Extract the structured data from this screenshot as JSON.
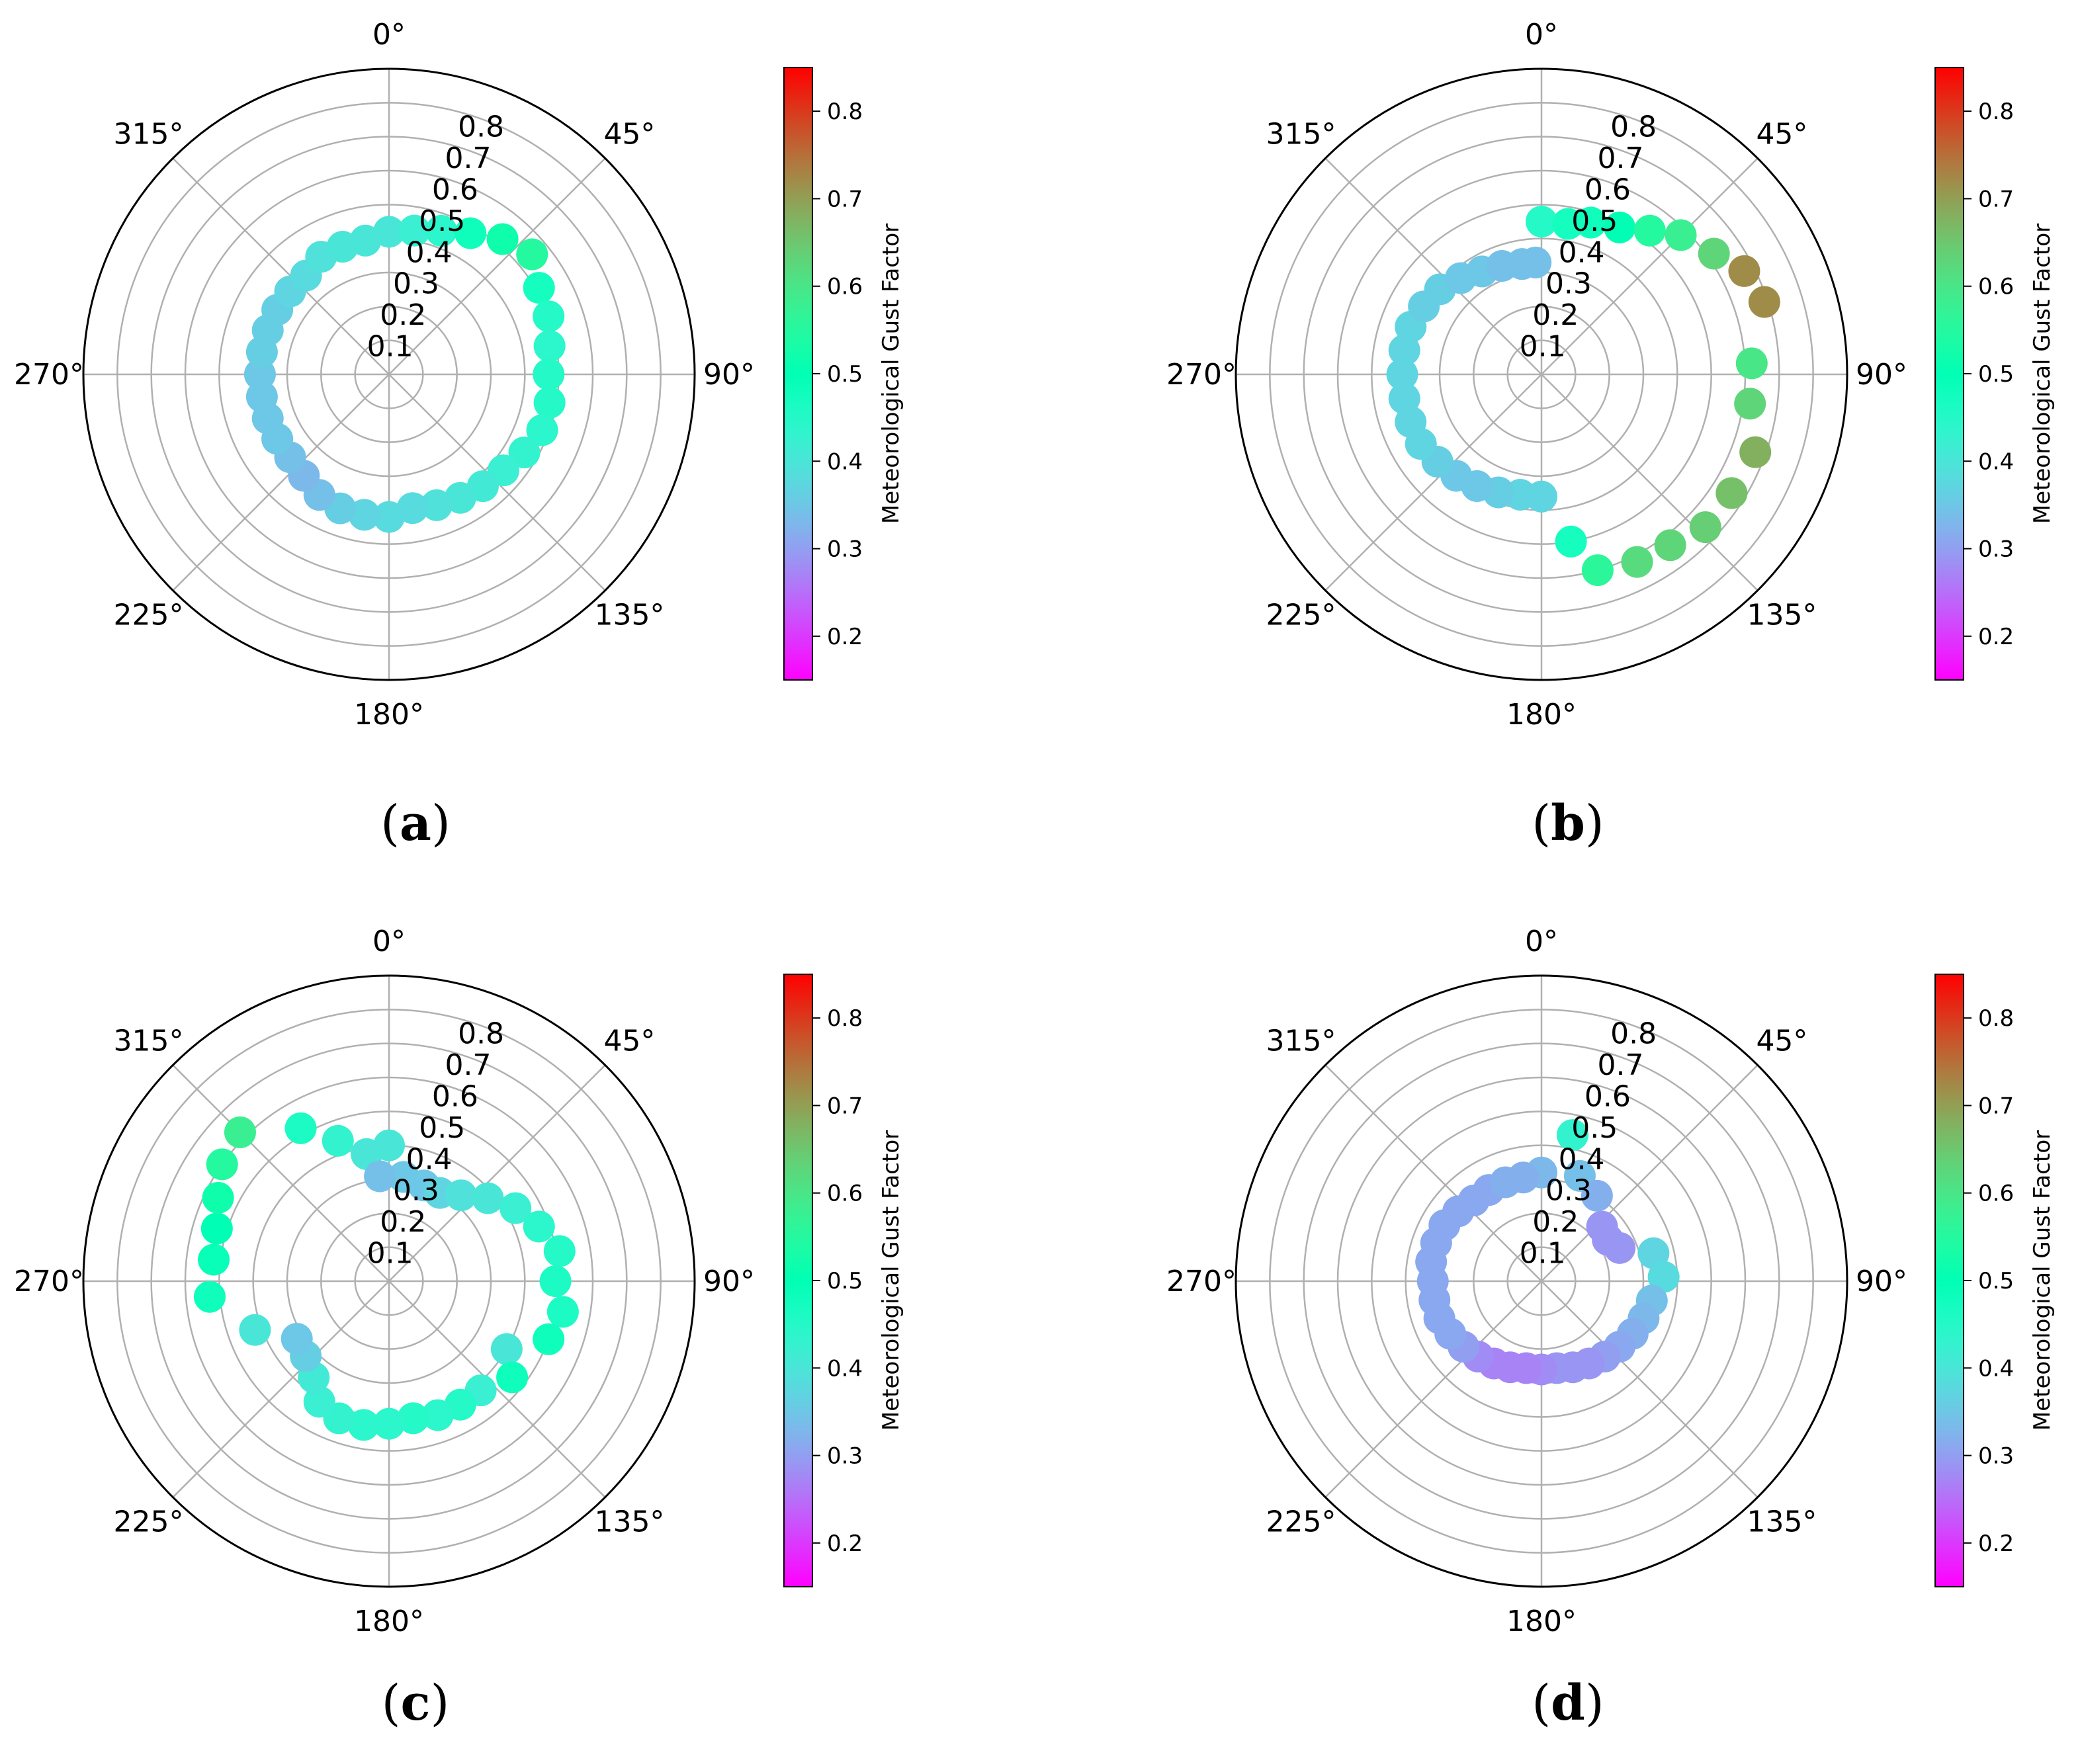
{
  "colorbar": {
    "label": "Meteorological Gust Factor",
    "min": 0.15,
    "max": 0.85,
    "ticks": [
      0.2,
      0.3,
      0.4,
      0.5,
      0.6,
      0.7,
      0.8
    ],
    "colormap": "rainbow"
  },
  "chart_data": [
    {
      "type": "scatter",
      "projection": "polar",
      "panel_label": "a",
      "theta_ticks": [
        "0°",
        "45°",
        "90°",
        "135°",
        "180°",
        "225°",
        "270°",
        "315°"
      ],
      "r_ticks": [
        "0.1",
        "0.2",
        "0.3",
        "0.4",
        "0.5",
        "0.6",
        "0.7",
        "0.8"
      ],
      "rlim": [
        0,
        0.9
      ],
      "grid": true,
      "theta_zero": "north",
      "theta_direction": "clockwise",
      "points": [
        {
          "theta": 0,
          "r": 0.42,
          "c": 0.4
        },
        {
          "theta": 10,
          "r": 0.43,
          "c": 0.42
        },
        {
          "theta": 20,
          "r": 0.45,
          "c": 0.44
        },
        {
          "theta": 30,
          "r": 0.48,
          "c": 0.48
        },
        {
          "theta": 40,
          "r": 0.52,
          "c": 0.52
        },
        {
          "theta": 50,
          "r": 0.55,
          "c": 0.55
        },
        {
          "theta": 60,
          "r": 0.51,
          "c": 0.47
        },
        {
          "theta": 70,
          "r": 0.5,
          "c": 0.45
        },
        {
          "theta": 80,
          "r": 0.48,
          "c": 0.44
        },
        {
          "theta": 90,
          "r": 0.47,
          "c": 0.45
        },
        {
          "theta": 100,
          "r": 0.48,
          "c": 0.45
        },
        {
          "theta": 110,
          "r": 0.48,
          "c": 0.44
        },
        {
          "theta": 120,
          "r": 0.46,
          "c": 0.43
        },
        {
          "theta": 130,
          "r": 0.44,
          "c": 0.42
        },
        {
          "theta": 140,
          "r": 0.43,
          "c": 0.41
        },
        {
          "theta": 150,
          "r": 0.42,
          "c": 0.4
        },
        {
          "theta": 160,
          "r": 0.41,
          "c": 0.39
        },
        {
          "theta": 170,
          "r": 0.4,
          "c": 0.38
        },
        {
          "theta": 180,
          "r": 0.42,
          "c": 0.38
        },
        {
          "theta": 190,
          "r": 0.42,
          "c": 0.37
        },
        {
          "theta": 200,
          "r": 0.42,
          "c": 0.36
        },
        {
          "theta": 210,
          "r": 0.41,
          "c": 0.34
        },
        {
          "theta": 220,
          "r": 0.39,
          "c": 0.33
        },
        {
          "theta": 230,
          "r": 0.38,
          "c": 0.34
        },
        {
          "theta": 240,
          "r": 0.38,
          "c": 0.35
        },
        {
          "theta": 250,
          "r": 0.38,
          "c": 0.35
        },
        {
          "theta": 260,
          "r": 0.38,
          "c": 0.35
        },
        {
          "theta": 270,
          "r": 0.38,
          "c": 0.35
        },
        {
          "theta": 280,
          "r": 0.38,
          "c": 0.36
        },
        {
          "theta": 290,
          "r": 0.38,
          "c": 0.36
        },
        {
          "theta": 300,
          "r": 0.38,
          "c": 0.36
        },
        {
          "theta": 310,
          "r": 0.38,
          "c": 0.37
        },
        {
          "theta": 320,
          "r": 0.38,
          "c": 0.38
        },
        {
          "theta": 330,
          "r": 0.4,
          "c": 0.39
        },
        {
          "theta": 340,
          "r": 0.4,
          "c": 0.4
        },
        {
          "theta": 350,
          "r": 0.4,
          "c": 0.4
        }
      ]
    },
    {
      "type": "scatter",
      "projection": "polar",
      "panel_label": "b",
      "theta_ticks": [
        "0°",
        "45°",
        "90°",
        "135°",
        "180°",
        "225°",
        "270°",
        "315°"
      ],
      "r_ticks": [
        "0.1",
        "0.2",
        "0.3",
        "0.4",
        "0.5",
        "0.6",
        "0.7",
        "0.8"
      ],
      "rlim": [
        0,
        0.9
      ],
      "grid": true,
      "theta_zero": "north",
      "theta_direction": "clockwise",
      "points": [
        {
          "theta": 0,
          "r": 0.45,
          "c": 0.45
        },
        {
          "theta": 10,
          "r": 0.45,
          "c": 0.47
        },
        {
          "theta": 18,
          "r": 0.47,
          "c": 0.48
        },
        {
          "theta": 28,
          "r": 0.49,
          "c": 0.5
        },
        {
          "theta": 37,
          "r": 0.53,
          "c": 0.55
        },
        {
          "theta": 45,
          "r": 0.58,
          "c": 0.58
        },
        {
          "theta": 55,
          "r": 0.62,
          "c": 0.63
        },
        {
          "theta": 63,
          "r": 0.67,
          "c": 0.72
        },
        {
          "theta": 72,
          "r": 0.69,
          "c": 0.72
        },
        {
          "theta": 87,
          "r": 0.62,
          "c": 0.6
        },
        {
          "theta": 98,
          "r": 0.62,
          "c": 0.63
        },
        {
          "theta": 110,
          "r": 0.67,
          "c": 0.68
        },
        {
          "theta": 122,
          "r": 0.66,
          "c": 0.66
        },
        {
          "theta": 133,
          "r": 0.66,
          "c": 0.64
        },
        {
          "theta": 143,
          "r": 0.63,
          "c": 0.63
        },
        {
          "theta": 153,
          "r": 0.62,
          "c": 0.62
        },
        {
          "theta": 164,
          "r": 0.6,
          "c": 0.56
        },
        {
          "theta": 170,
          "r": 0.5,
          "c": 0.47
        },
        {
          "theta": 180,
          "r": 0.36,
          "c": 0.37
        },
        {
          "theta": 190,
          "r": 0.36,
          "c": 0.37
        },
        {
          "theta": 200,
          "r": 0.37,
          "c": 0.36
        },
        {
          "theta": 210,
          "r": 0.38,
          "c": 0.35
        },
        {
          "theta": 220,
          "r": 0.39,
          "c": 0.35
        },
        {
          "theta": 230,
          "r": 0.4,
          "c": 0.36
        },
        {
          "theta": 240,
          "r": 0.41,
          "c": 0.37
        },
        {
          "theta": 250,
          "r": 0.41,
          "c": 0.37
        },
        {
          "theta": 260,
          "r": 0.41,
          "c": 0.37
        },
        {
          "theta": 270,
          "r": 0.41,
          "c": 0.37
        },
        {
          "theta": 280,
          "r": 0.41,
          "c": 0.37
        },
        {
          "theta": 290,
          "r": 0.41,
          "c": 0.37
        },
        {
          "theta": 300,
          "r": 0.4,
          "c": 0.36
        },
        {
          "theta": 310,
          "r": 0.39,
          "c": 0.36
        },
        {
          "theta": 320,
          "r": 0.37,
          "c": 0.35
        },
        {
          "theta": 330,
          "r": 0.35,
          "c": 0.35
        },
        {
          "theta": 340,
          "r": 0.34,
          "c": 0.34
        },
        {
          "theta": 350,
          "r": 0.33,
          "c": 0.34
        },
        {
          "theta": 357,
          "r": 0.33,
          "c": 0.34
        }
      ]
    },
    {
      "type": "scatter",
      "projection": "polar",
      "panel_label": "c",
      "theta_ticks": [
        "0°",
        "45°",
        "90°",
        "135°",
        "180°",
        "225°",
        "270°",
        "315°"
      ],
      "r_ticks": [
        "0.1",
        "0.2",
        "0.3",
        "0.4",
        "0.5",
        "0.6",
        "0.7",
        "0.8"
      ],
      "rlim": [
        0,
        0.9
      ],
      "grid": true,
      "theta_zero": "north",
      "theta_direction": "clockwise",
      "points": [
        {
          "theta": 0,
          "r": 0.4,
          "c": 0.4
        },
        {
          "theta": 8,
          "r": 0.31,
          "c": 0.35
        },
        {
          "theta": 20,
          "r": 0.3,
          "c": 0.35
        },
        {
          "theta": 30,
          "r": 0.3,
          "c": 0.37
        },
        {
          "theta": 40,
          "r": 0.33,
          "c": 0.39
        },
        {
          "theta": 50,
          "r": 0.38,
          "c": 0.4
        },
        {
          "theta": 60,
          "r": 0.43,
          "c": 0.42
        },
        {
          "theta": 70,
          "r": 0.47,
          "c": 0.44
        },
        {
          "theta": 80,
          "r": 0.51,
          "c": 0.45
        },
        {
          "theta": 90,
          "r": 0.49,
          "c": 0.46
        },
        {
          "theta": 100,
          "r": 0.52,
          "c": 0.46
        },
        {
          "theta": 110,
          "r": 0.5,
          "c": 0.48
        },
        {
          "theta": 120,
          "r": 0.4,
          "c": 0.4
        },
        {
          "theta": 128,
          "r": 0.46,
          "c": 0.48
        },
        {
          "theta": 140,
          "r": 0.42,
          "c": 0.42
        },
        {
          "theta": 150,
          "r": 0.42,
          "c": 0.45
        },
        {
          "theta": 160,
          "r": 0.42,
          "c": 0.44
        },
        {
          "theta": 170,
          "r": 0.41,
          "c": 0.45
        },
        {
          "theta": 180,
          "r": 0.42,
          "c": 0.44
        },
        {
          "theta": 190,
          "r": 0.43,
          "c": 0.44
        },
        {
          "theta": 200,
          "r": 0.43,
          "c": 0.43
        },
        {
          "theta": 210,
          "r": 0.41,
          "c": 0.42
        },
        {
          "theta": 218,
          "r": 0.36,
          "c": 0.41
        },
        {
          "theta": 228,
          "r": 0.33,
          "c": 0.36
        },
        {
          "theta": 238,
          "r": 0.32,
          "c": 0.35
        },
        {
          "theta": 250,
          "r": 0.42,
          "c": 0.4
        },
        {
          "theta": 265,
          "r": 0.53,
          "c": 0.48
        },
        {
          "theta": 277,
          "r": 0.52,
          "c": 0.49
        },
        {
          "theta": 287,
          "r": 0.53,
          "c": 0.5
        },
        {
          "theta": 296,
          "r": 0.56,
          "c": 0.52
        },
        {
          "theta": 305,
          "r": 0.6,
          "c": 0.55
        },
        {
          "theta": 315,
          "r": 0.62,
          "c": 0.58
        },
        {
          "theta": 330,
          "r": 0.52,
          "c": 0.46
        },
        {
          "theta": 340,
          "r": 0.44,
          "c": 0.43
        },
        {
          "theta": 350,
          "r": 0.38,
          "c": 0.4
        },
        {
          "theta": 355,
          "r": 0.31,
          "c": 0.34
        }
      ]
    },
    {
      "type": "scatter",
      "projection": "polar",
      "panel_label": "d",
      "theta_ticks": [
        "0°",
        "45°",
        "90°",
        "135°",
        "180°",
        "225°",
        "270°",
        "315°"
      ],
      "r_ticks": [
        "0.1",
        "0.2",
        "0.3",
        "0.4",
        "0.5",
        "0.6",
        "0.7",
        "0.8"
      ],
      "rlim": [
        0,
        0.9
      ],
      "grid": true,
      "theta_zero": "north",
      "theta_direction": "clockwise",
      "points": [
        {
          "theta": 0,
          "r": 0.32,
          "c": 0.33
        },
        {
          "theta": 12,
          "r": 0.44,
          "c": 0.43
        },
        {
          "theta": 20,
          "r": 0.33,
          "c": 0.34
        },
        {
          "theta": 33,
          "r": 0.3,
          "c": 0.32
        },
        {
          "theta": 48,
          "r": 0.24,
          "c": 0.29
        },
        {
          "theta": 58,
          "r": 0.23,
          "c": 0.29
        },
        {
          "theta": 67,
          "r": 0.25,
          "c": 0.29
        },
        {
          "theta": 76,
          "r": 0.34,
          "c": 0.37
        },
        {
          "theta": 88,
          "r": 0.36,
          "c": 0.38
        },
        {
          "theta": 100,
          "r": 0.33,
          "c": 0.34
        },
        {
          "theta": 110,
          "r": 0.32,
          "c": 0.33
        },
        {
          "theta": 120,
          "r": 0.31,
          "c": 0.32
        },
        {
          "theta": 130,
          "r": 0.3,
          "c": 0.31
        },
        {
          "theta": 140,
          "r": 0.29,
          "c": 0.3
        },
        {
          "theta": 150,
          "r": 0.28,
          "c": 0.29
        },
        {
          "theta": 160,
          "r": 0.27,
          "c": 0.29
        },
        {
          "theta": 170,
          "r": 0.26,
          "c": 0.29
        },
        {
          "theta": 180,
          "r": 0.26,
          "c": 0.28
        },
        {
          "theta": 190,
          "r": 0.26,
          "c": 0.27
        },
        {
          "theta": 200,
          "r": 0.27,
          "c": 0.27
        },
        {
          "theta": 210,
          "r": 0.28,
          "c": 0.27
        },
        {
          "theta": 220,
          "r": 0.29,
          "c": 0.28
        },
        {
          "theta": 230,
          "r": 0.3,
          "c": 0.3
        },
        {
          "theta": 240,
          "r": 0.31,
          "c": 0.31
        },
        {
          "theta": 250,
          "r": 0.32,
          "c": 0.31
        },
        {
          "theta": 260,
          "r": 0.32,
          "c": 0.31
        },
        {
          "theta": 270,
          "r": 0.32,
          "c": 0.31
        },
        {
          "theta": 280,
          "r": 0.33,
          "c": 0.31
        },
        {
          "theta": 290,
          "r": 0.33,
          "c": 0.31
        },
        {
          "theta": 300,
          "r": 0.33,
          "c": 0.31
        },
        {
          "theta": 310,
          "r": 0.32,
          "c": 0.31
        },
        {
          "theta": 320,
          "r": 0.31,
          "c": 0.31
        },
        {
          "theta": 330,
          "r": 0.31,
          "c": 0.31
        },
        {
          "theta": 340,
          "r": 0.31,
          "c": 0.32
        },
        {
          "theta": 350,
          "r": 0.31,
          "c": 0.32
        }
      ]
    }
  ]
}
